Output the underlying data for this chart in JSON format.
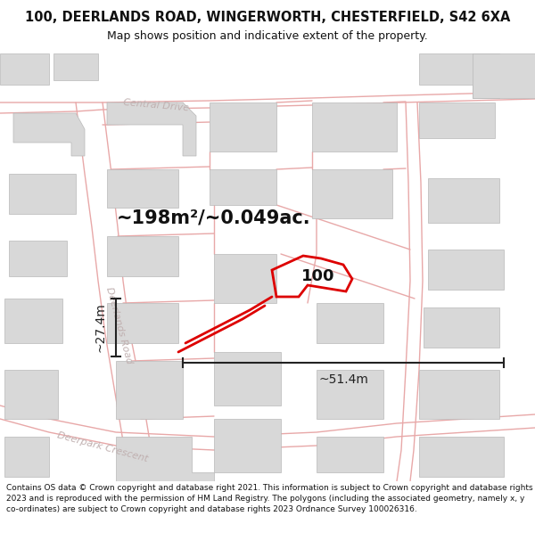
{
  "title": "100, DEERLANDS ROAD, WINGERWORTH, CHESTERFIELD, S42 6XA",
  "subtitle": "Map shows position and indicative extent of the property.",
  "area_label": "~198m²/~0.049ac.",
  "number_label": "100",
  "width_label": "~51.4m",
  "height_label": "~27.4m",
  "footer": "Contains OS data © Crown copyright and database right 2021. This information is subject to Crown copyright and database rights 2023 and is reproduced with the permission of HM Land Registry. The polygons (including the associated geometry, namely x, y co-ordinates) are subject to Crown copyright and database rights 2023 Ordnance Survey 100026316.",
  "map_bg": "#f0eeee",
  "building_color": "#d8d8d8",
  "building_edge": "#b8b8b8",
  "road_line_color": "#e8a8a8",
  "plot_line_color": "#dd0000",
  "dim_color": "#222222",
  "street_label_color": "#c0b0b0",
  "title_fontsize": 10.5,
  "subtitle_fontsize": 9,
  "footer_fontsize": 6.5,
  "area_fontsize": 15,
  "number_fontsize": 13,
  "dim_fontsize": 10,
  "street_fontsize": 8
}
